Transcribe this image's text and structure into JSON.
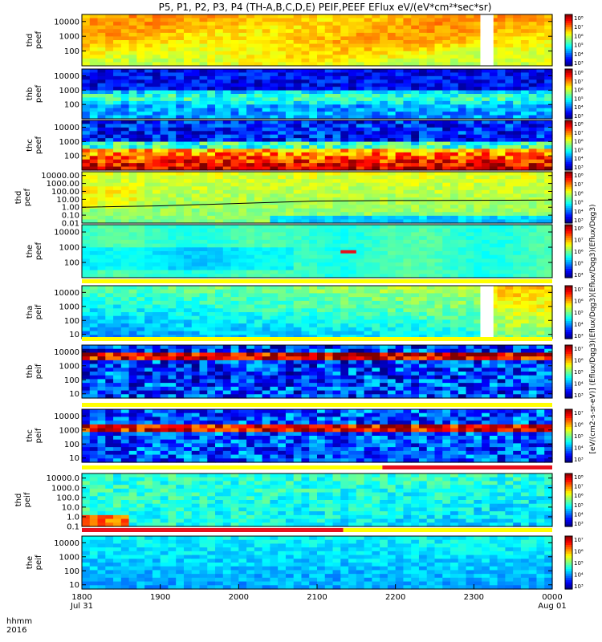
{
  "title": "P5, P1, P2, P3, P4 (TH-A,B,C,D,E) PEIF,PEEF EFlux eV/(eV*cm²*sec*sr)",
  "colorbar_unit_label": "[eV/(cm2-s-sr-eV)] (Eflux/Dqg3)(Eflux/Dqg3)(Eflux/Dqg3)(Eflux/Dqg3)",
  "time_axis": {
    "label_row1": "hhmm",
    "label_row2": "2016",
    "ticks": [
      "1800",
      "1900",
      "2000",
      "2100",
      "2200",
      "2300",
      "0000"
    ],
    "tick_subs": {
      "0": "Jul 31",
      "6": "Aug 01"
    }
  },
  "chart_data": [
    {
      "type": "heatmap",
      "probe_label": "thd",
      "species_label": "peef",
      "y_scale": "log",
      "yticks": [
        "10000",
        "1000",
        "100"
      ],
      "ylim": [
        10,
        30000
      ],
      "colorbar_ticks": [
        "10⁸",
        "10⁷",
        "10⁶",
        "10⁵",
        "10⁴",
        "10³"
      ],
      "data_gaps": [
        [
          "2305",
          "2315"
        ]
      ],
      "base_level": "green-yellow",
      "hot_band": "yellow-orange top half"
    },
    {
      "type": "heatmap",
      "probe_label": "thb",
      "species_label": "peef",
      "y_scale": "log",
      "yticks": [
        "10000",
        "1000",
        "100"
      ],
      "ylim": [
        10,
        30000
      ],
      "colorbar_ticks": [
        "10⁸",
        "10⁷",
        "10⁶",
        "10⁵",
        "10⁴",
        "10³"
      ],
      "band_structure": "dark blue top, cyan-green middle, blue lower"
    },
    {
      "type": "heatmap",
      "probe_label": "thc",
      "species_label": "peef",
      "y_scale": "log",
      "yticks": [
        "10000",
        "1000",
        "100"
      ],
      "ylim": [
        10,
        30000
      ],
      "colorbar_ticks": [
        "10⁸",
        "10⁷",
        "10⁶",
        "10⁵",
        "10⁴",
        "10³"
      ],
      "band_structure": "noisy blue top, cyan, yellow-orange-red bottom"
    },
    {
      "type": "heatmap",
      "probe_label": "thd",
      "species_label": "peef",
      "y_scale": "log",
      "yticks": [
        "10000.00",
        "1000.00",
        "100.00",
        "10.00",
        "1.00",
        "0.10",
        "0.01"
      ],
      "ylim": [
        0.01,
        30000
      ],
      "colorbar_ticks": [
        "10⁸",
        "10⁷",
        "10⁶",
        "10⁵",
        "10⁴",
        "10³"
      ],
      "overlay_line": {
        "x": [
          "1800",
          "1900",
          "2000",
          "2100",
          "2200",
          "0000"
        ],
        "y": [
          1.0,
          1.5,
          3.0,
          6.0,
          7.0,
          8.0
        ]
      }
    },
    {
      "type": "heatmap",
      "probe_label": "the",
      "species_label": "peef",
      "y_scale": "log",
      "yticks": [
        "10000",
        "1000",
        "100"
      ],
      "ylim": [
        10,
        30000
      ],
      "colorbar_ticks": [
        "10⁸",
        "10⁷",
        "10⁶",
        "10⁵",
        "10⁴"
      ],
      "flag_segment": {
        "start": "2118",
        "end": "2130",
        "y": 500
      }
    },
    {
      "type": "heatmap",
      "probe_label": "tha",
      "species_label": "peif",
      "y_scale": "log",
      "yticks": [
        "10000",
        "1000",
        "100",
        "10"
      ],
      "ylim": [
        5,
        30000
      ],
      "colorbar_ticks": [
        "10⁷",
        "10⁶",
        "10⁵",
        "10⁴",
        "10³"
      ],
      "data_gaps": [
        [
          "2305",
          "2315"
        ]
      ]
    },
    {
      "type": "heatmap",
      "probe_label": "thb",
      "species_label": "peif",
      "y_scale": "log",
      "yticks": [
        "10000",
        "1000",
        "100",
        "10"
      ],
      "ylim": [
        5,
        30000
      ],
      "colorbar_ticks": [
        "10⁷",
        "10⁶",
        "10⁵",
        "10⁴",
        "10³"
      ],
      "hot_band_y": 1000
    },
    {
      "type": "heatmap",
      "probe_label": "thc",
      "species_label": "peif",
      "y_scale": "log",
      "yticks": [
        "10000",
        "1000",
        "100",
        "10"
      ],
      "ylim": [
        5,
        30000
      ],
      "colorbar_ticks": [
        "10⁷",
        "10⁶",
        "10⁵",
        "10⁴",
        "10³"
      ],
      "hot_band_y": 1000
    },
    {
      "type": "heatmap",
      "probe_label": "thd",
      "species_label": "peif",
      "y_scale": "log",
      "yticks": [
        "10000.0",
        "1000.0",
        "100.0",
        "10.0",
        "1.0",
        "0.1"
      ],
      "ylim": [
        0.1,
        30000
      ],
      "colorbar_ticks": [
        "10⁸",
        "10⁷",
        "10⁶",
        "10⁵",
        "10⁴",
        "10³"
      ]
    },
    {
      "type": "heatmap",
      "probe_label": "the",
      "species_label": "peif",
      "y_scale": "log",
      "yticks": [
        "10000",
        "1000",
        "100",
        "10"
      ],
      "ylim": [
        5,
        30000
      ],
      "colorbar_ticks": [
        "10⁷",
        "10⁶",
        "10⁵",
        "10⁴",
        "10³"
      ]
    }
  ],
  "mode_bars": [
    {
      "segments": [
        {
          "start": "1800",
          "end": "0000",
          "color": "#ffff00"
        }
      ]
    },
    {
      "segments": [
        {
          "start": "1800",
          "end": "0000",
          "color": "#ffff00"
        }
      ]
    },
    {
      "segments": [
        {
          "start": "1800",
          "end": "0000",
          "color": "#ffff00"
        }
      ]
    },
    {
      "segments": [
        {
          "start": "1800",
          "end": "2150",
          "color": "#ffff00"
        },
        {
          "start": "2150",
          "end": "0000",
          "color": "#e8101c"
        }
      ]
    },
    {
      "segments": [
        {
          "start": "1800",
          "end": "2120",
          "color": "#e8101c"
        },
        {
          "start": "2120",
          "end": "0000",
          "color": "#ffff00"
        }
      ]
    }
  ]
}
